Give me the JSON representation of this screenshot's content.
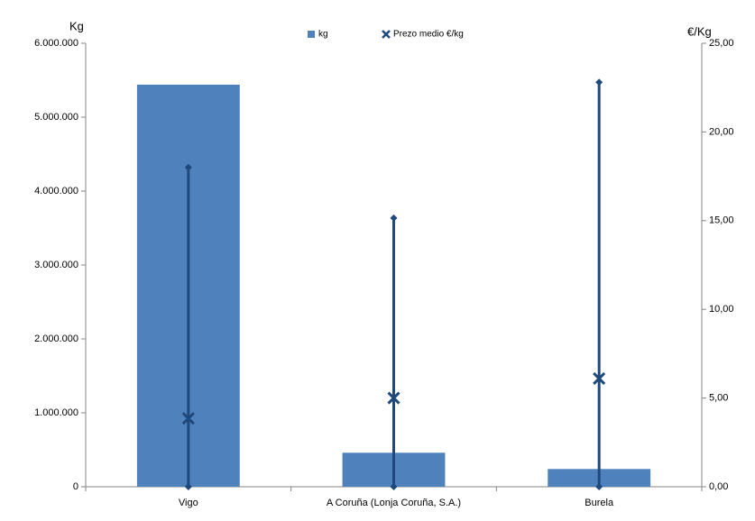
{
  "chart_data": {
    "type": "bar",
    "ylabel": "Kg",
    "y2label": "€/Kg",
    "categories": [
      "Vigo",
      "A Coruña (Lonja Coruña, S.A.)",
      "Burela"
    ],
    "series": [
      {
        "name": "kg",
        "color": "#4f81bd",
        "values": [
          5440000,
          460000,
          240000
        ]
      },
      {
        "name": "Prezo medio €/kg",
        "color": "#1f497d",
        "axis": "y2",
        "values": [
          3.85,
          5.0,
          6.1
        ],
        "high": [
          18.0,
          15.15,
          22.8
        ],
        "low": [
          0,
          0,
          0
        ]
      }
    ],
    "ylim": [
      0,
      6000000
    ],
    "yticks": [
      0,
      {
        "value": 1000000,
        "label": "1.000.000"
      },
      {
        "value": 2000000,
        "label": "2.000.000"
      },
      {
        "value": 3000000,
        "label": "3.000.000"
      },
      {
        "value": 4000000,
        "label": "4.000.000"
      },
      {
        "value": 5000000,
        "label": "5.000.000"
      },
      {
        "value": 6000000,
        "label": "6.000.000"
      }
    ],
    "y2lim": [
      0,
      25
    ],
    "y2ticks": [
      {
        "value": 0,
        "label": "0,00"
      },
      {
        "value": 5,
        "label": "5,00"
      },
      {
        "value": 10,
        "label": "10,00"
      },
      {
        "value": 15,
        "label": "15,00"
      },
      {
        "value": 20,
        "label": "20,00"
      },
      {
        "value": 25,
        "label": "25,00"
      }
    ],
    "grid": false,
    "legend": "top"
  }
}
